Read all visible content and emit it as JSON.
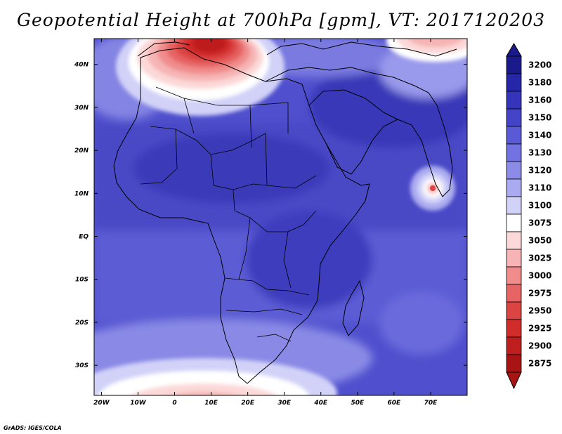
{
  "title": "Geopotential Height at 700hPa [gpm], VT: 2017120203",
  "credit": "GrADS: IGES/COLA",
  "map": {
    "lat_labels": [
      "40N",
      "30N",
      "20N",
      "10N",
      "EQ",
      "10S",
      "20S",
      "30S"
    ],
    "lon_labels": [
      "20W",
      "10W",
      "0",
      "10E",
      "20E",
      "30E",
      "40E",
      "50E",
      "60E",
      "70E"
    ]
  },
  "colorbar": {
    "levels": [
      "3200",
      "3180",
      "3160",
      "3150",
      "3140",
      "3130",
      "3120",
      "3110",
      "3100",
      "3075",
      "3050",
      "3025",
      "3000",
      "2975",
      "2950",
      "2925",
      "2900",
      "2875"
    ],
    "colors": [
      "#1a1a8a",
      "#2626a8",
      "#3434bc",
      "#4444c8",
      "#5a5ad6",
      "#7272e0",
      "#8c8ce8",
      "#aaaaf0",
      "#d2d2f8",
      "#ffffff",
      "#fcd8d8",
      "#f6b4b4",
      "#f08c8c",
      "#e66464",
      "#dc4444",
      "#d02c2c",
      "#be1e1e",
      "#a81414"
    ]
  }
}
